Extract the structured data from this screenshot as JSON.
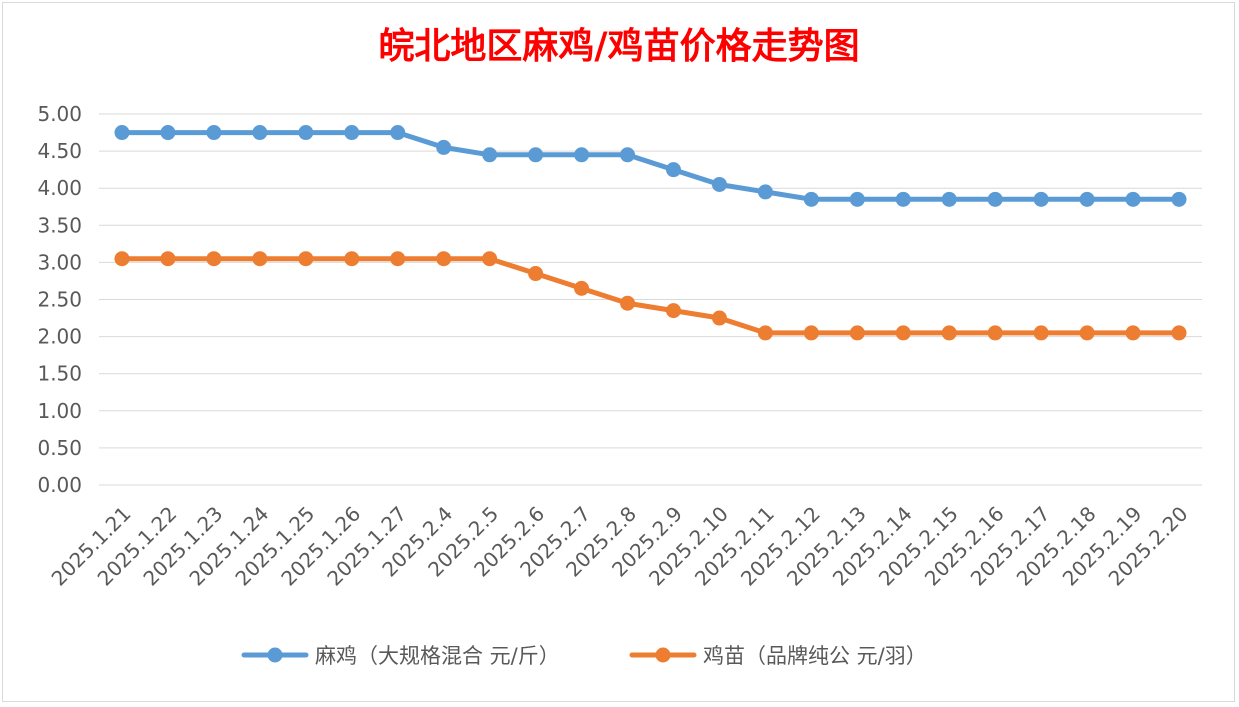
{
  "chart_data": {
    "type": "line",
    "title": "皖北地区麻鸡/鸡苗价格走势图",
    "title_color": "#ff0000",
    "categories": [
      "2025.1.21",
      "2025.1.22",
      "2025.1.23",
      "2025.1.24",
      "2025.1.25",
      "2025.1.26",
      "2025.1.27",
      "2025.2.4",
      "2025.2.5",
      "2025.2.6",
      "2025.2.7",
      "2025.2.8",
      "2025.2.9",
      "2025.2.10",
      "2025.2.11",
      "2025.2.12",
      "2025.2.13",
      "2025.2.14",
      "2025.2.15",
      "2025.2.16",
      "2025.2.17",
      "2025.2.18",
      "2025.2.19",
      "2025.2.20"
    ],
    "ylim": [
      0,
      5
    ],
    "yticks": [
      "0.00",
      "0.50",
      "1.00",
      "1.50",
      "2.00",
      "2.50",
      "3.00",
      "3.50",
      "4.00",
      "4.50",
      "5.00"
    ],
    "grid": true,
    "legend_position": "bottom",
    "series": [
      {
        "name": "麻鸡（大规格混合 元/斤）",
        "color": "#5b9bd5",
        "values": [
          4.75,
          4.75,
          4.75,
          4.75,
          4.75,
          4.75,
          4.75,
          4.55,
          4.45,
          4.45,
          4.45,
          4.45,
          4.25,
          4.05,
          3.95,
          3.85,
          3.85,
          3.85,
          3.85,
          3.85,
          3.85,
          3.85,
          3.85,
          3.85
        ]
      },
      {
        "name": "鸡苗（品牌纯公 元/羽）",
        "color": "#ed7d31",
        "values": [
          3.05,
          3.05,
          3.05,
          3.05,
          3.05,
          3.05,
          3.05,
          3.05,
          3.05,
          2.85,
          2.65,
          2.45,
          2.35,
          2.25,
          2.05,
          2.05,
          2.05,
          2.05,
          2.05,
          2.05,
          2.05,
          2.05,
          2.05,
          2.05
        ]
      }
    ]
  }
}
